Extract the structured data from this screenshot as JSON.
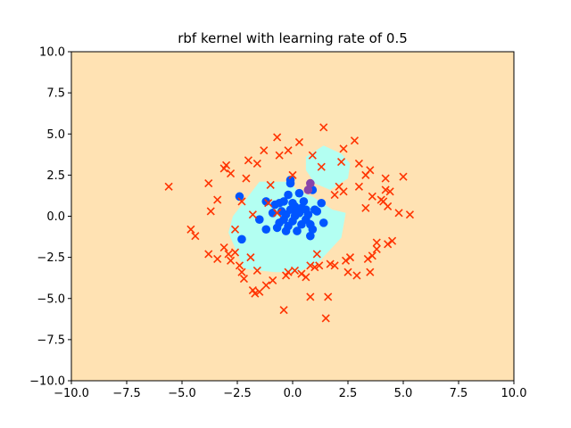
{
  "chart_data": {
    "type": "scatter",
    "title": "rbf kernel with learning rate of 0.5",
    "xlabel": "",
    "ylabel": "",
    "xlim": [
      -10,
      10
    ],
    "ylim": [
      -10,
      10
    ],
    "xticks": [
      -10,
      -7.5,
      -5,
      -2.5,
      0,
      2.5,
      5,
      7.5,
      10
    ],
    "yticks": [
      -10,
      -7.5,
      -5,
      -2.5,
      0,
      2.5,
      5,
      7.5,
      10
    ],
    "xtick_labels": [
      "−10.0",
      "−7.5",
      "−5.0",
      "−2.5",
      "0.0",
      "2.5",
      "5.0",
      "7.5",
      "10.0"
    ],
    "ytick_labels": [
      "−10.0",
      "−7.5",
      "−5.0",
      "−2.5",
      "0.0",
      "2.5",
      "5.0",
      "7.5",
      "10.0"
    ],
    "grid": false,
    "colors": {
      "background_region": "#ffe2b3",
      "inner_region": "#b3fff2",
      "class_inner": "#0055ff",
      "class_outer": "#ff3300",
      "misclassified": "#8844aa"
    },
    "regions": [
      {
        "class": "inner",
        "polygon": [
          [
            -1.5,
            2.1
          ],
          [
            -0.2,
            2.1
          ],
          [
            0.3,
            1.5
          ],
          [
            0.9,
            1.2
          ],
          [
            1.8,
            0.4
          ],
          [
            2.4,
            0.2
          ],
          [
            2.2,
            -1.3
          ],
          [
            1.1,
            -2.9
          ],
          [
            0.2,
            -3.4
          ],
          [
            -0.8,
            -3.4
          ],
          [
            -2.2,
            -3.2
          ],
          [
            -2.9,
            -1.0
          ],
          [
            -2.7,
            0.0
          ],
          [
            -1.9,
            1.4
          ]
        ]
      },
      {
        "class": "inner",
        "polygon": [
          [
            0.6,
            3.6
          ],
          [
            1.4,
            4.3
          ],
          [
            2.2,
            3.8
          ],
          [
            2.6,
            3.2
          ],
          [
            2.5,
            2.3
          ],
          [
            1.7,
            1.6
          ],
          [
            1.0,
            2.0
          ],
          [
            0.6,
            2.8
          ]
        ]
      }
    ],
    "series": [
      {
        "marker": "circle",
        "color_key": "class_inner",
        "points": [
          [
            -2.4,
            1.2
          ],
          [
            -2.3,
            -1.4
          ],
          [
            -1.2,
            0.9
          ],
          [
            -1.5,
            -0.2
          ],
          [
            -1.2,
            -0.8
          ],
          [
            -0.8,
            0.7
          ],
          [
            -0.6,
            0.8
          ],
          [
            -0.6,
            -0.4
          ],
          [
            -0.5,
            0.3
          ],
          [
            -0.4,
            0.9
          ],
          [
            -0.3,
            0.1
          ],
          [
            -0.2,
            -0.6
          ],
          [
            -0.1,
            0.4
          ],
          [
            -0.1,
            2.0
          ],
          [
            -0.1,
            2.2
          ],
          [
            0.0,
            -0.3
          ],
          [
            0.1,
            0.0
          ],
          [
            0.1,
            0.6
          ],
          [
            0.2,
            -0.9
          ],
          [
            0.3,
            1.4
          ],
          [
            0.3,
            0.2
          ],
          [
            0.4,
            -0.5
          ],
          [
            0.5,
            0.9
          ],
          [
            0.6,
            -0.2
          ],
          [
            0.7,
            0.1
          ],
          [
            0.8,
            -1.2
          ],
          [
            0.9,
            1.6
          ],
          [
            1.0,
            0.4
          ],
          [
            1.1,
            0.3
          ],
          [
            1.3,
            0.8
          ],
          [
            -0.3,
            -0.9
          ],
          [
            0.4,
            0.5
          ],
          [
            -0.9,
            0.2
          ],
          [
            0.2,
            0.3
          ],
          [
            -0.4,
            -0.2
          ],
          [
            0.8,
            -0.5
          ],
          [
            -0.2,
            1.3
          ],
          [
            0.6,
            0.4
          ],
          [
            -0.7,
            -0.7
          ],
          [
            0.0,
            0.8
          ],
          [
            1.4,
            -0.4
          ],
          [
            0.9,
            -0.8
          ]
        ]
      },
      {
        "marker": "circle",
        "color_key": "misclassified",
        "points": [
          [
            0.8,
            2.0
          ],
          [
            0.7,
            1.6
          ]
        ]
      },
      {
        "marker": "x",
        "color_key": "class_outer",
        "points": [
          [
            -5.6,
            1.8
          ],
          [
            -4.6,
            -0.8
          ],
          [
            -4.4,
            -1.2
          ],
          [
            -3.8,
            2.0
          ],
          [
            -3.8,
            -2.3
          ],
          [
            -3.7,
            0.3
          ],
          [
            -3.4,
            -2.6
          ],
          [
            -3.4,
            1.0
          ],
          [
            -3.1,
            2.9
          ],
          [
            -3.0,
            3.1
          ],
          [
            -2.9,
            -2.3
          ],
          [
            -2.8,
            2.6
          ],
          [
            -2.8,
            -2.7
          ],
          [
            -2.6,
            -2.2
          ],
          [
            -2.4,
            -3.0
          ],
          [
            -2.3,
            -3.4
          ],
          [
            -2.2,
            -3.8
          ],
          [
            -2.1,
            2.3
          ],
          [
            -2.0,
            3.4
          ],
          [
            -1.9,
            -2.5
          ],
          [
            -1.8,
            -4.5
          ],
          [
            -1.7,
            -4.7
          ],
          [
            -1.6,
            3.2
          ],
          [
            -1.5,
            -4.6
          ],
          [
            -1.3,
            4.0
          ],
          [
            -1.2,
            -4.2
          ],
          [
            -1.0,
            1.9
          ],
          [
            -0.9,
            -3.9
          ],
          [
            -0.7,
            4.8
          ],
          [
            -0.6,
            3.7
          ],
          [
            -0.4,
            -5.7
          ],
          [
            -0.3,
            -3.6
          ],
          [
            -0.2,
            -3.4
          ],
          [
            0.0,
            2.5
          ],
          [
            0.1,
            -3.3
          ],
          [
            0.3,
            4.5
          ],
          [
            0.4,
            -3.5
          ],
          [
            0.6,
            -3.7
          ],
          [
            0.8,
            -3.0
          ],
          [
            0.8,
            -4.9
          ],
          [
            1.0,
            -3.1
          ],
          [
            1.2,
            -3.0
          ],
          [
            1.3,
            3.0
          ],
          [
            1.4,
            5.4
          ],
          [
            1.5,
            -6.2
          ],
          [
            1.6,
            -4.9
          ],
          [
            1.7,
            -2.9
          ],
          [
            1.9,
            -3.0
          ],
          [
            2.2,
            3.3
          ],
          [
            2.3,
            4.1
          ],
          [
            2.4,
            -2.7
          ],
          [
            2.5,
            -3.4
          ],
          [
            2.6,
            -2.5
          ],
          [
            2.8,
            4.6
          ],
          [
            2.9,
            -3.6
          ],
          [
            3.0,
            3.2
          ],
          [
            3.3,
            0.5
          ],
          [
            3.4,
            -2.6
          ],
          [
            3.5,
            -3.4
          ],
          [
            3.6,
            -2.4
          ],
          [
            3.8,
            -1.6
          ],
          [
            3.8,
            -2.0
          ],
          [
            4.0,
            1.0
          ],
          [
            4.1,
            0.9
          ],
          [
            4.2,
            2.3
          ],
          [
            4.3,
            -1.7
          ],
          [
            4.4,
            1.5
          ],
          [
            4.5,
            -1.5
          ],
          [
            4.8,
            0.2
          ],
          [
            5.0,
            2.4
          ],
          [
            5.3,
            0.1
          ],
          [
            3.3,
            2.5
          ],
          [
            3.5,
            2.8
          ],
          [
            3.0,
            1.8
          ],
          [
            4.2,
            1.6
          ],
          [
            3.6,
            1.2
          ],
          [
            4.3,
            0.6
          ],
          [
            -1.1,
            0.8
          ],
          [
            -1.8,
            0.1
          ],
          [
            -2.3,
            0.9
          ],
          [
            -3.1,
            -1.9
          ],
          [
            -2.6,
            -0.8
          ],
          [
            -1.6,
            -3.3
          ],
          [
            0.9,
            3.7
          ],
          [
            1.1,
            -2.3
          ],
          [
            1.9,
            1.3
          ],
          [
            2.1,
            1.8
          ],
          [
            2.3,
            1.5
          ],
          [
            -0.7,
            0.2
          ],
          [
            -0.2,
            4.0
          ]
        ]
      }
    ]
  }
}
